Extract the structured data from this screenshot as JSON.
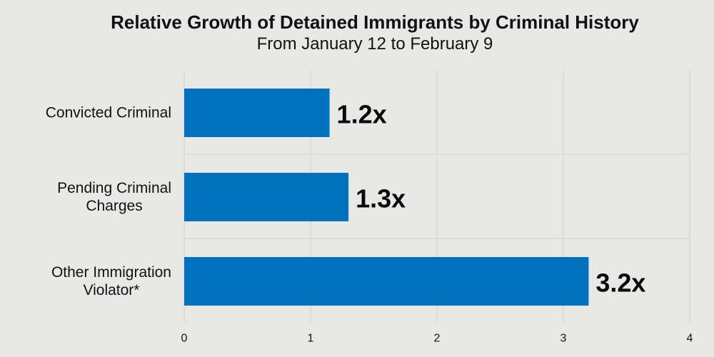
{
  "colors": {
    "background": "#e8e9e7",
    "bar": "#0071bc",
    "grid": "#d2d3d1"
  },
  "chart_data": {
    "type": "bar",
    "orientation": "horizontal",
    "title": "Relative Growth of Detained Immigrants by Criminal History",
    "subtitle": "From January 12 to February 9",
    "categories": [
      [
        "Convicted Criminal"
      ],
      [
        "Pending Criminal",
        "Charges"
      ],
      [
        "Other Immigration",
        "Violator*"
      ]
    ],
    "values": [
      1.15,
      1.3,
      3.2
    ],
    "data_labels": [
      "1.2x",
      "1.3x",
      "3.2x"
    ],
    "x_ticks": [
      "0",
      "1",
      "2",
      "3",
      "4"
    ],
    "xlim": [
      0,
      4
    ],
    "xlabel": "",
    "ylabel": "",
    "grid": true,
    "legend": "none"
  }
}
